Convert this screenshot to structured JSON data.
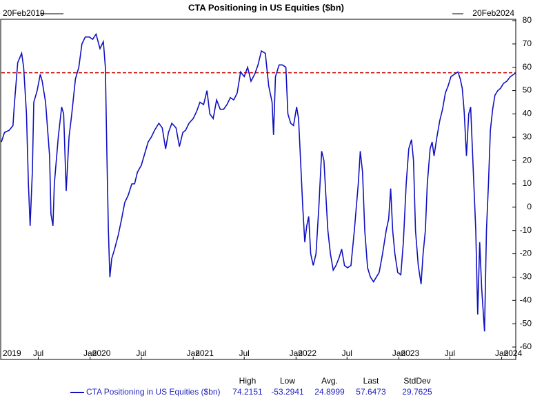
{
  "chart_data": {
    "type": "line",
    "title": "CTA Positioning in US Equities ($bn)",
    "start_label": "20Feb2019",
    "end_label": "20Feb2024",
    "xlim": [
      "2019-02-20",
      "2024-02-20"
    ],
    "ylim": [
      -60,
      80
    ],
    "yticks": [
      -60,
      -50,
      -40,
      -30,
      -20,
      -10,
      0,
      10,
      20,
      30,
      40,
      50,
      60,
      70,
      80
    ],
    "y_axis_side": "right",
    "grid": false,
    "xticks": [
      {
        "value": "2019-07-01",
        "label": "Jul"
      },
      {
        "value": "2020-01-01",
        "label": "Jan"
      },
      {
        "value": "2020-07-01",
        "label": "Jul"
      },
      {
        "value": "2021-01-01",
        "label": "Jan"
      },
      {
        "value": "2021-07-01",
        "label": "Jul"
      },
      {
        "value": "2022-01-01",
        "label": "Jan"
      },
      {
        "value": "2022-07-01",
        "label": "Jul"
      },
      {
        "value": "2023-01-01",
        "label": "Jan"
      },
      {
        "value": "2023-07-01",
        "label": "Jul"
      },
      {
        "value": "2024-01-01",
        "label": "Jan"
      }
    ],
    "year_ticks": [
      {
        "value": "2019-01-01",
        "label": "2019"
      },
      {
        "value": "2020-01-01",
        "label": "2020"
      },
      {
        "value": "2021-01-01",
        "label": "2021"
      },
      {
        "value": "2022-01-01",
        "label": "2022"
      },
      {
        "value": "2023-01-01",
        "label": "2023"
      },
      {
        "value": "2024-01-01",
        "label": "2024"
      }
    ],
    "reference_line": {
      "value": 57.6473,
      "color": "#cc0000",
      "style": "dashed"
    },
    "series": [
      {
        "name": "CTA Positioning in US Equities ($bn)",
        "color": "#1010c0",
        "x": [
          "2019-02-20",
          "2019-03-03",
          "2019-03-20",
          "2019-04-02",
          "2019-04-07",
          "2019-04-19",
          "2019-05-03",
          "2019-05-10",
          "2019-05-20",
          "2019-05-27",
          "2019-06-02",
          "2019-06-10",
          "2019-06-15",
          "2019-06-27",
          "2019-07-08",
          "2019-07-15",
          "2019-07-27",
          "2019-08-10",
          "2019-08-15",
          "2019-08-22",
          "2019-08-27",
          "2019-09-10",
          "2019-09-22",
          "2019-09-29",
          "2019-10-08",
          "2019-10-18",
          "2019-10-28",
          "2019-11-10",
          "2019-11-22",
          "2019-12-03",
          "2019-12-15",
          "2019-12-29",
          "2020-01-10",
          "2020-01-22",
          "2020-02-05",
          "2020-02-17",
          "2020-02-24",
          "2020-03-01",
          "2020-03-06",
          "2020-03-11",
          "2020-03-18",
          "2020-03-28",
          "2020-04-10",
          "2020-04-22",
          "2020-05-03",
          "2020-05-15",
          "2020-05-28",
          "2020-06-07",
          "2020-06-17",
          "2020-07-01",
          "2020-07-13",
          "2020-07-25",
          "2020-08-05",
          "2020-08-17",
          "2020-09-01",
          "2020-09-13",
          "2020-09-25",
          "2020-10-05",
          "2020-10-17",
          "2020-11-01",
          "2020-11-13",
          "2020-11-25",
          "2020-12-05",
          "2020-12-17",
          "2021-01-01",
          "2021-01-13",
          "2021-01-25",
          "2021-02-07",
          "2021-02-19",
          "2021-03-01",
          "2021-03-13",
          "2021-03-25",
          "2021-04-07",
          "2021-04-19",
          "2021-05-01",
          "2021-05-13",
          "2021-05-25",
          "2021-06-06",
          "2021-06-18",
          "2021-07-01",
          "2021-07-13",
          "2021-07-25",
          "2021-08-07",
          "2021-08-19",
          "2021-08-31",
          "2021-09-14",
          "2021-09-26",
          "2021-10-08",
          "2021-10-13",
          "2021-10-20",
          "2021-11-02",
          "2021-11-14",
          "2021-11-26",
          "2021-12-03",
          "2021-12-13",
          "2021-12-23",
          "2022-01-03",
          "2022-01-10",
          "2022-01-17",
          "2022-01-25",
          "2022-02-01",
          "2022-02-08",
          "2022-02-15",
          "2022-02-22",
          "2022-03-03",
          "2022-03-13",
          "2022-03-23",
          "2022-04-02",
          "2022-04-10",
          "2022-04-17",
          "2022-04-24",
          "2022-05-03",
          "2022-05-13",
          "2022-05-23",
          "2022-06-02",
          "2022-06-12",
          "2022-06-22",
          "2022-07-03",
          "2022-07-15",
          "2022-07-27",
          "2022-08-10",
          "2022-08-17",
          "2022-08-25",
          "2022-09-02",
          "2022-09-12",
          "2022-09-22",
          "2022-10-03",
          "2022-10-13",
          "2022-10-23",
          "2022-11-04",
          "2022-11-17",
          "2022-11-26",
          "2022-12-03",
          "2022-12-10",
          "2022-12-18",
          "2022-12-28",
          "2023-01-08",
          "2023-01-17",
          "2023-01-27",
          "2023-02-05",
          "2023-02-15",
          "2023-02-22",
          "2023-03-01",
          "2023-03-11",
          "2023-03-21",
          "2023-03-28",
          "2023-04-05",
          "2023-04-12",
          "2023-04-22",
          "2023-04-29",
          "2023-05-06",
          "2023-05-16",
          "2023-05-26",
          "2023-06-05",
          "2023-06-15",
          "2023-06-25",
          "2023-07-05",
          "2023-07-17",
          "2023-07-30",
          "2023-08-07",
          "2023-08-14",
          "2023-08-21",
          "2023-08-29",
          "2023-09-06",
          "2023-09-13",
          "2023-09-20",
          "2023-10-01",
          "2023-10-08",
          "2023-10-15",
          "2023-10-22",
          "2023-11-01",
          "2023-11-08",
          "2023-11-15",
          "2023-11-22",
          "2023-11-30",
          "2023-12-08",
          "2023-12-18",
          "2023-12-28",
          "2024-01-07",
          "2024-01-19",
          "2024-02-01",
          "2024-02-13",
          "2024-02-20"
        ],
        "values": [
          28,
          32,
          33,
          35,
          44,
          62,
          66,
          60,
          40,
          10,
          -8,
          15,
          45,
          50,
          57,
          54,
          45,
          22,
          -3,
          -8,
          10,
          30,
          43,
          40,
          7,
          30,
          40,
          55,
          60,
          70,
          73,
          73,
          72,
          74.2151,
          68,
          71,
          60,
          20,
          -10,
          -30,
          -22,
          -18,
          -12,
          -5,
          2,
          5,
          10,
          10,
          15,
          18,
          23,
          28,
          30,
          33,
          36,
          34,
          25,
          32,
          36,
          34,
          26,
          32,
          33,
          36,
          38,
          41,
          45,
          44,
          50,
          40,
          38,
          46,
          42,
          42,
          44,
          47,
          46,
          49,
          58,
          56,
          60,
          54,
          57,
          61,
          67,
          66,
          52,
          45,
          31,
          56,
          61,
          61,
          60,
          40,
          36,
          35,
          43,
          38,
          20,
          0,
          -15,
          -8,
          -4,
          -20,
          -25,
          -20,
          0,
          24,
          20,
          5,
          -10,
          -20,
          -27,
          -25,
          -22,
          -18,
          -25,
          -26,
          -25,
          -10,
          10,
          24,
          15,
          -10,
          -26,
          -30,
          -32,
          -30,
          -28,
          -20,
          -10,
          -5,
          8,
          -10,
          -20,
          -28,
          -29,
          -15,
          10,
          25,
          29,
          20,
          -10,
          -25,
          -33,
          -20,
          -10,
          10,
          25,
          28,
          22,
          30,
          37,
          42,
          49,
          52,
          56,
          57,
          58,
          55,
          51,
          41,
          22,
          40,
          43,
          22,
          -10,
          -46,
          -15,
          -35,
          -53.2941,
          -10,
          10,
          33,
          42,
          48,
          50,
          51,
          53,
          54,
          56,
          57,
          57.6473
        ]
      }
    ],
    "stats": [
      {
        "label": "High",
        "value": 74.2151
      },
      {
        "label": "Low",
        "value": -53.2941
      },
      {
        "label": "Avg.",
        "value": 24.8999
      },
      {
        "label": "Last",
        "value": 57.6473
      },
      {
        "label": "StdDev",
        "value": 29.7625
      }
    ]
  }
}
